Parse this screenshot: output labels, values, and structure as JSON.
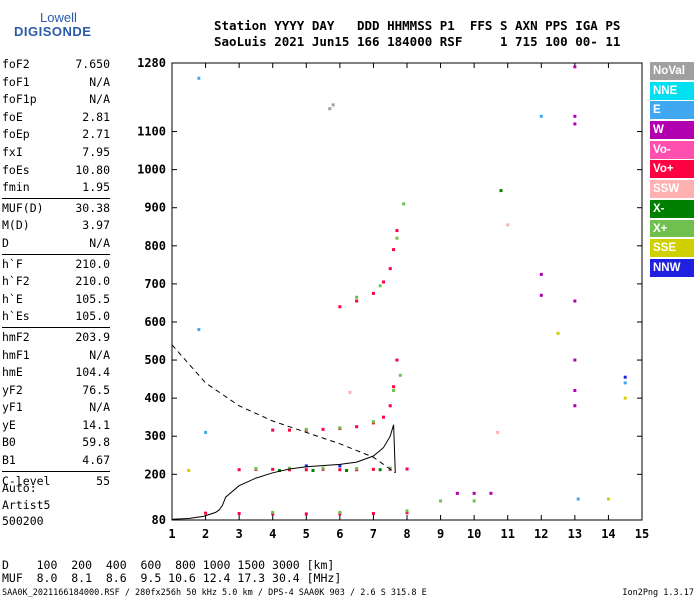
{
  "logo": {
    "top": "Lowell",
    "bottom": "DIGISONDE"
  },
  "header": {
    "line1": "Station YYYY DAY   DDD HHMMSS P1  FFS S AXN PPS IGA PS",
    "line2": "SaoLuis 2021 Jun15 166 184000 RSF     1 715 100 00- 11"
  },
  "params_groups": [
    [
      {
        "k": "foF2",
        "v": "7.650"
      },
      {
        "k": "foF1",
        "v": "N/A"
      },
      {
        "k": "foF1p",
        "v": "N/A"
      },
      {
        "k": "foE",
        "v": "2.81"
      },
      {
        "k": "foEp",
        "v": "2.71"
      },
      {
        "k": "fxI",
        "v": "7.95"
      },
      {
        "k": "foEs",
        "v": "10.80"
      },
      {
        "k": "fmin",
        "v": "1.95"
      }
    ],
    [
      {
        "k": "MUF(D)",
        "v": "30.38"
      },
      {
        "k": "M(D)",
        "v": "3.97"
      },
      {
        "k": "D",
        "v": "N/A"
      }
    ],
    [
      {
        "k": "h`F",
        "v": "210.0"
      },
      {
        "k": "h`F2",
        "v": "210.0"
      },
      {
        "k": "h`E",
        "v": "105.5"
      },
      {
        "k": "h`Es",
        "v": "105.0"
      }
    ],
    [
      {
        "k": "hmF2",
        "v": "203.9"
      },
      {
        "k": "hmF1",
        "v": "N/A"
      },
      {
        "k": "hmE",
        "v": "104.4"
      },
      {
        "k": "yF2",
        "v": "76.5"
      },
      {
        "k": "yF1",
        "v": "N/A"
      },
      {
        "k": "yE",
        "v": "14.1"
      },
      {
        "k": "B0",
        "v": "59.8"
      },
      {
        "k": "B1",
        "v": "4.67"
      }
    ],
    [
      {
        "k": "C-level",
        "v": "55"
      }
    ]
  ],
  "auto": {
    "line1": "Auto:",
    "line2": "Artist5",
    "line3": "500200"
  },
  "legend": [
    {
      "label": "NoVal",
      "color": "#a0a0a0"
    },
    {
      "label": "NNE",
      "color": "#00e0f0"
    },
    {
      "label": "E",
      "color": "#40a8f0"
    },
    {
      "label": "W",
      "color": "#b000b0"
    },
    {
      "label": "Vo-",
      "color": "#ff50b0"
    },
    {
      "label": "Vo+",
      "color": "#ff0040"
    },
    {
      "label": "SSW",
      "color": "#ffb0b0"
    },
    {
      "label": "X-",
      "color": "#008000"
    },
    {
      "label": "X+",
      "color": "#70c050"
    },
    {
      "label": "SSE",
      "color": "#d0d000"
    },
    {
      "label": "NNW",
      "color": "#2020e0"
    }
  ],
  "dmuf": {
    "d_line": "D    100  200  400  600  800 1000 1500 3000 [km]",
    "muf_line": "MUF  8.0  8.1  8.6  9.5 10.6 12.4 17.3 30.4 [MHz]"
  },
  "footer": "SAA0K_2021166184000.RSF / 280fx256h 50 kHz 5.0 km / DPS-4 SAA0K 903 / 2.6 S 315.8 E",
  "version": "Ion2Png 1.3.17",
  "chart_data": {
    "type": "scatter",
    "x_ticks": [
      1,
      2,
      3,
      4,
      5,
      6,
      7,
      8,
      9,
      10,
      11,
      12,
      13,
      14,
      15
    ],
    "y_ticks": [
      80,
      200,
      300,
      400,
      500,
      600,
      700,
      800,
      900,
      1000,
      1100,
      1280
    ],
    "xlim": [
      1,
      15
    ],
    "ylim": [
      80,
      1280
    ],
    "series": [
      {
        "color": "#ff0040",
        "points": [
          [
            3.0,
            212
          ],
          [
            3.5,
            213
          ],
          [
            4.0,
            213
          ],
          [
            4.5,
            212
          ],
          [
            5.0,
            212
          ],
          [
            5.5,
            213
          ],
          [
            6.0,
            212
          ],
          [
            6.5,
            212
          ],
          [
            7.0,
            213
          ],
          [
            7.5,
            213
          ],
          [
            8.0,
            214
          ],
          [
            4.0,
            316
          ],
          [
            4.5,
            316
          ],
          [
            5.0,
            316
          ],
          [
            5.5,
            318
          ],
          [
            6.0,
            320
          ],
          [
            6.5,
            325
          ],
          [
            7.0,
            335
          ],
          [
            7.3,
            350
          ],
          [
            7.5,
            380
          ],
          [
            7.6,
            430
          ],
          [
            7.7,
            500
          ],
          [
            6.0,
            640
          ],
          [
            6.5,
            655
          ],
          [
            7.0,
            675
          ],
          [
            7.3,
            705
          ],
          [
            7.5,
            740
          ],
          [
            7.6,
            790
          ],
          [
            7.7,
            840
          ],
          [
            2.0,
            98
          ],
          [
            3.0,
            97
          ],
          [
            4.0,
            96
          ],
          [
            5.0,
            96
          ],
          [
            6.0,
            96
          ],
          [
            7.0,
            97
          ],
          [
            8.0,
            99
          ]
        ]
      },
      {
        "color": "#70c050",
        "points": [
          [
            3.5,
            215
          ],
          [
            4.5,
            216
          ],
          [
            5.5,
            216
          ],
          [
            6.5,
            215
          ],
          [
            7.5,
            216
          ],
          [
            5.0,
            318
          ],
          [
            6.0,
            322
          ],
          [
            7.0,
            338
          ],
          [
            7.6,
            420
          ],
          [
            7.8,
            460
          ],
          [
            6.5,
            665
          ],
          [
            7.2,
            695
          ],
          [
            7.7,
            820
          ],
          [
            7.9,
            910
          ],
          [
            4.0,
            100
          ],
          [
            6.0,
            100
          ],
          [
            8.0,
            104
          ],
          [
            9.0,
            130
          ],
          [
            10.0,
            130
          ]
        ]
      },
      {
        "color": "#008000",
        "points": [
          [
            4.2,
            210
          ],
          [
            5.2,
            210
          ],
          [
            6.2,
            210
          ],
          [
            7.2,
            212
          ],
          [
            10.8,
            945
          ]
        ]
      },
      {
        "color": "#b000b0",
        "points": [
          [
            13.0,
            1270
          ],
          [
            13.0,
            1140
          ],
          [
            13.0,
            1120
          ],
          [
            12.0,
            725
          ],
          [
            12.0,
            670
          ],
          [
            13.0,
            655
          ],
          [
            13.0,
            500
          ],
          [
            13.0,
            420
          ],
          [
            13.0,
            380
          ],
          [
            9.5,
            150
          ],
          [
            10.0,
            150
          ],
          [
            10.5,
            150
          ]
        ]
      },
      {
        "color": "#40a8f0",
        "points": [
          [
            1.8,
            1240
          ],
          [
            1.8,
            580
          ],
          [
            2.0,
            310
          ],
          [
            12.0,
            1140
          ],
          [
            13.1,
            135
          ],
          [
            14.5,
            440
          ]
        ]
      },
      {
        "color": "#2020e0",
        "points": [
          [
            5.0,
            222
          ],
          [
            6.0,
            222
          ],
          [
            14.5,
            455
          ]
        ]
      },
      {
        "color": "#d0d000",
        "points": [
          [
            1.5,
            210
          ],
          [
            12.5,
            570
          ],
          [
            14.5,
            400
          ],
          [
            14.0,
            135
          ]
        ]
      },
      {
        "color": "#a0a0a0",
        "points": [
          [
            5.8,
            1170
          ],
          [
            5.7,
            1160
          ]
        ]
      },
      {
        "color": "#ffb0b0",
        "points": [
          [
            10.7,
            310
          ],
          [
            11.0,
            855
          ],
          [
            6.3,
            415
          ]
        ]
      }
    ],
    "profile_curve": [
      [
        7.65,
        204
      ],
      [
        7.6,
        330
      ],
      [
        7.5,
        300
      ],
      [
        7.3,
        270
      ],
      [
        7.0,
        248
      ],
      [
        6.5,
        232
      ],
      [
        6.0,
        226
      ],
      [
        5.0,
        220
      ],
      [
        4.5,
        214
      ],
      [
        4.0,
        204
      ],
      [
        3.5,
        190
      ],
      [
        3.0,
        170
      ],
      [
        2.6,
        140
      ],
      [
        2.5,
        118
      ],
      [
        2.4,
        106
      ],
      [
        2.3,
        100
      ],
      [
        1.95,
        90
      ],
      [
        1.5,
        84
      ],
      [
        1.0,
        82
      ]
    ],
    "extrap_curve": [
      [
        1.0,
        540
      ],
      [
        1.5,
        490
      ],
      [
        2.0,
        440
      ],
      [
        3.0,
        380
      ],
      [
        4.0,
        340
      ],
      [
        5.0,
        310
      ],
      [
        6.0,
        280
      ],
      [
        7.0,
        245
      ],
      [
        7.65,
        204
      ]
    ]
  }
}
